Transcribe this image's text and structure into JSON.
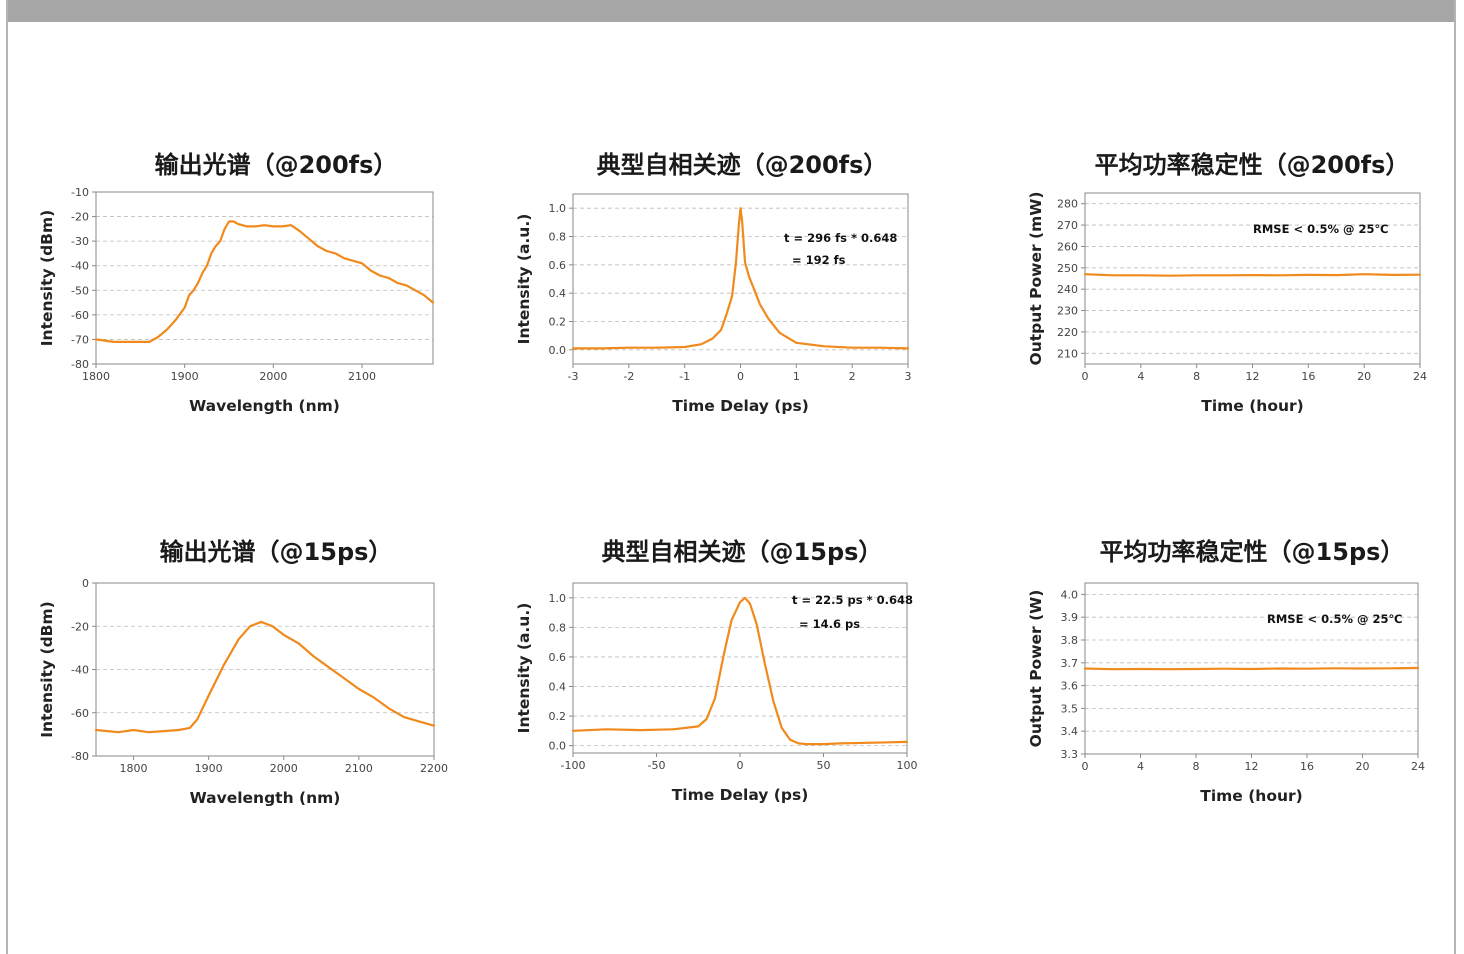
{
  "theme": {
    "line_color": "#f08a1c",
    "grid_color": "#bdbdbd",
    "frame_color": "#8a8a8a",
    "top_bar_color": "#a6a6a6"
  },
  "chart_data": [
    {
      "id": "spectrum-200fs",
      "type": "line",
      "title": "输出光谱（@200fs）",
      "xlabel": "Wavelength (nm)",
      "ylabel": "Intensity (dBm)",
      "xlim": [
        1800,
        2180
      ],
      "ylim": [
        -80,
        -10
      ],
      "xticks": [
        1800,
        1900,
        2000,
        2100
      ],
      "yticks": [
        -80,
        -70,
        -60,
        -50,
        -40,
        -30,
        -20,
        -10
      ],
      "grid": "horizontal-dashed",
      "series": [
        {
          "x": [
            1800,
            1820,
            1840,
            1860,
            1870,
            1880,
            1890,
            1900,
            1905,
            1910,
            1915,
            1920,
            1925,
            1930,
            1935,
            1940,
            1945,
            1950,
            1955,
            1960,
            1970,
            1980,
            1990,
            2000,
            2010,
            2020,
            2030,
            2040,
            2050,
            2060,
            2070,
            2080,
            2090,
            2100,
            2110,
            2120,
            2130,
            2140,
            2150,
            2160,
            2170,
            2180
          ],
          "y": [
            -70,
            -71,
            -71,
            -71,
            -69,
            -66,
            -62,
            -57,
            -52,
            -50,
            -47,
            -43,
            -40,
            -35,
            -32,
            -30,
            -25,
            -22,
            -22,
            -23,
            -24,
            -24,
            -23.5,
            -24,
            -24,
            -23.5,
            -26,
            -29,
            -32,
            -34,
            -35,
            -37,
            -38,
            -39,
            -42,
            -44,
            -45,
            -47,
            -48,
            -50,
            -52,
            -55
          ]
        }
      ]
    },
    {
      "id": "autocorr-200fs",
      "type": "line",
      "title": "典型自相关迹（@200fs）",
      "xlabel": "Time Delay (ps)",
      "ylabel": "Intensity (a.u.)",
      "xlim": [
        -3,
        3
      ],
      "ylim": [
        -0.1,
        1.1
      ],
      "xticks": [
        -3,
        -2,
        -1,
        0,
        1,
        2,
        3
      ],
      "yticks": [
        0.0,
        0.2,
        0.4,
        0.6,
        0.8,
        1.0
      ],
      "grid": "horizontal-dashed",
      "annotations": [
        "t = 296 fs * 0.648",
        "= 192 fs"
      ],
      "series": [
        {
          "x": [
            -3,
            -2.5,
            -2,
            -1.5,
            -1,
            -0.7,
            -0.5,
            -0.35,
            -0.25,
            -0.15,
            -0.08,
            -0.03,
            0,
            0.03,
            0.08,
            0.15,
            0.25,
            0.35,
            0.5,
            0.7,
            1,
            1.5,
            2,
            2.5,
            3
          ],
          "y": [
            0.01,
            0.01,
            0.015,
            0.015,
            0.02,
            0.04,
            0.08,
            0.14,
            0.25,
            0.38,
            0.62,
            0.88,
            1.0,
            0.9,
            0.62,
            0.52,
            0.42,
            0.32,
            0.22,
            0.12,
            0.05,
            0.025,
            0.015,
            0.015,
            0.01
          ]
        }
      ]
    },
    {
      "id": "power-200fs",
      "type": "line",
      "title": "平均功率稳定性（@200fs）",
      "xlabel": "Time (hour)",
      "ylabel": "Output Power (mW)",
      "xlim": [
        0,
        24
      ],
      "ylim": [
        205,
        285
      ],
      "xticks": [
        0,
        4,
        8,
        12,
        16,
        20,
        24
      ],
      "yticks": [
        210,
        220,
        230,
        240,
        250,
        260,
        270,
        280
      ],
      "grid": "horizontal-dashed",
      "annotations": [
        "RMSE < 0.5% @ 25℃"
      ],
      "series": [
        {
          "x": [
            0,
            2,
            4,
            6,
            8,
            10,
            12,
            14,
            16,
            18,
            20,
            22,
            24
          ],
          "y": [
            247,
            246.5,
            246.5,
            246.3,
            246.5,
            246.5,
            246.6,
            246.5,
            246.7,
            246.6,
            247,
            246.7,
            246.8
          ]
        }
      ]
    },
    {
      "id": "spectrum-15ps",
      "type": "line",
      "title": "输出光谱（@15ps）",
      "xlabel": "Wavelength (nm)",
      "ylabel": "Intensity (dBm)",
      "xlim": [
        1750,
        2200
      ],
      "ylim": [
        -80,
        0
      ],
      "xticks": [
        1800,
        1900,
        2000,
        2100,
        2200
      ],
      "yticks": [
        -80,
        -60,
        -40,
        -20,
        0
      ],
      "grid": "horizontal-dashed",
      "series": [
        {
          "x": [
            1750,
            1780,
            1800,
            1820,
            1840,
            1860,
            1875,
            1885,
            1900,
            1920,
            1940,
            1955,
            1970,
            1985,
            2000,
            2020,
            2040,
            2060,
            2080,
            2100,
            2120,
            2140,
            2160,
            2180,
            2200
          ],
          "y": [
            -68,
            -69,
            -68,
            -69,
            -68.5,
            -68,
            -67,
            -63,
            -52,
            -38,
            -26,
            -20,
            -18,
            -20,
            -24,
            -28,
            -34,
            -39,
            -44,
            -49,
            -53,
            -58,
            -62,
            -64,
            -66
          ]
        }
      ]
    },
    {
      "id": "autocorr-15ps",
      "type": "line",
      "title": "典型自相关迹（@15ps）",
      "xlabel": "Time Delay (ps)",
      "ylabel": "Intensity (a.u.)",
      "xlim": [
        -100,
        100
      ],
      "ylim": [
        -0.05,
        1.1
      ],
      "xticks": [
        -100,
        -50,
        0,
        50,
        100
      ],
      "yticks": [
        0.0,
        0.2,
        0.4,
        0.6,
        0.8,
        1.0
      ],
      "grid": "horizontal-dashed",
      "annotations": [
        "t = 22.5 ps * 0.648",
        "= 14.6 ps"
      ],
      "series": [
        {
          "x": [
            -100,
            -80,
            -60,
            -40,
            -25,
            -20,
            -15,
            -10,
            -5,
            0,
            3,
            6,
            10,
            15,
            20,
            25,
            30,
            35,
            40,
            50,
            60,
            80,
            100
          ],
          "y": [
            0.1,
            0.11,
            0.105,
            0.11,
            0.13,
            0.18,
            0.32,
            0.6,
            0.85,
            0.97,
            1.0,
            0.96,
            0.82,
            0.55,
            0.3,
            0.12,
            0.04,
            0.015,
            0.01,
            0.01,
            0.015,
            0.02,
            0.025
          ]
        }
      ]
    },
    {
      "id": "power-15ps",
      "type": "line",
      "title": "平均功率稳定性（@15ps）",
      "xlabel": "Time (hour)",
      "ylabel": "Output Power (W)",
      "xlim": [
        0,
        24
      ],
      "ylim": [
        3.3,
        4.05
      ],
      "xticks": [
        0,
        4,
        8,
        12,
        16,
        20,
        24
      ],
      "yticks": [
        3.3,
        3.4,
        3.5,
        3.6,
        3.7,
        3.8,
        3.9,
        4.0
      ],
      "grid": "horizontal-dashed",
      "annotations": [
        "RMSE < 0.5% @ 25℃"
      ],
      "series": [
        {
          "x": [
            0,
            2,
            4,
            6,
            8,
            10,
            12,
            14,
            16,
            18,
            20,
            22,
            24
          ],
          "y": [
            3.675,
            3.672,
            3.673,
            3.672,
            3.673,
            3.674,
            3.673,
            3.675,
            3.674,
            3.676,
            3.675,
            3.676,
            3.677
          ]
        }
      ]
    }
  ]
}
